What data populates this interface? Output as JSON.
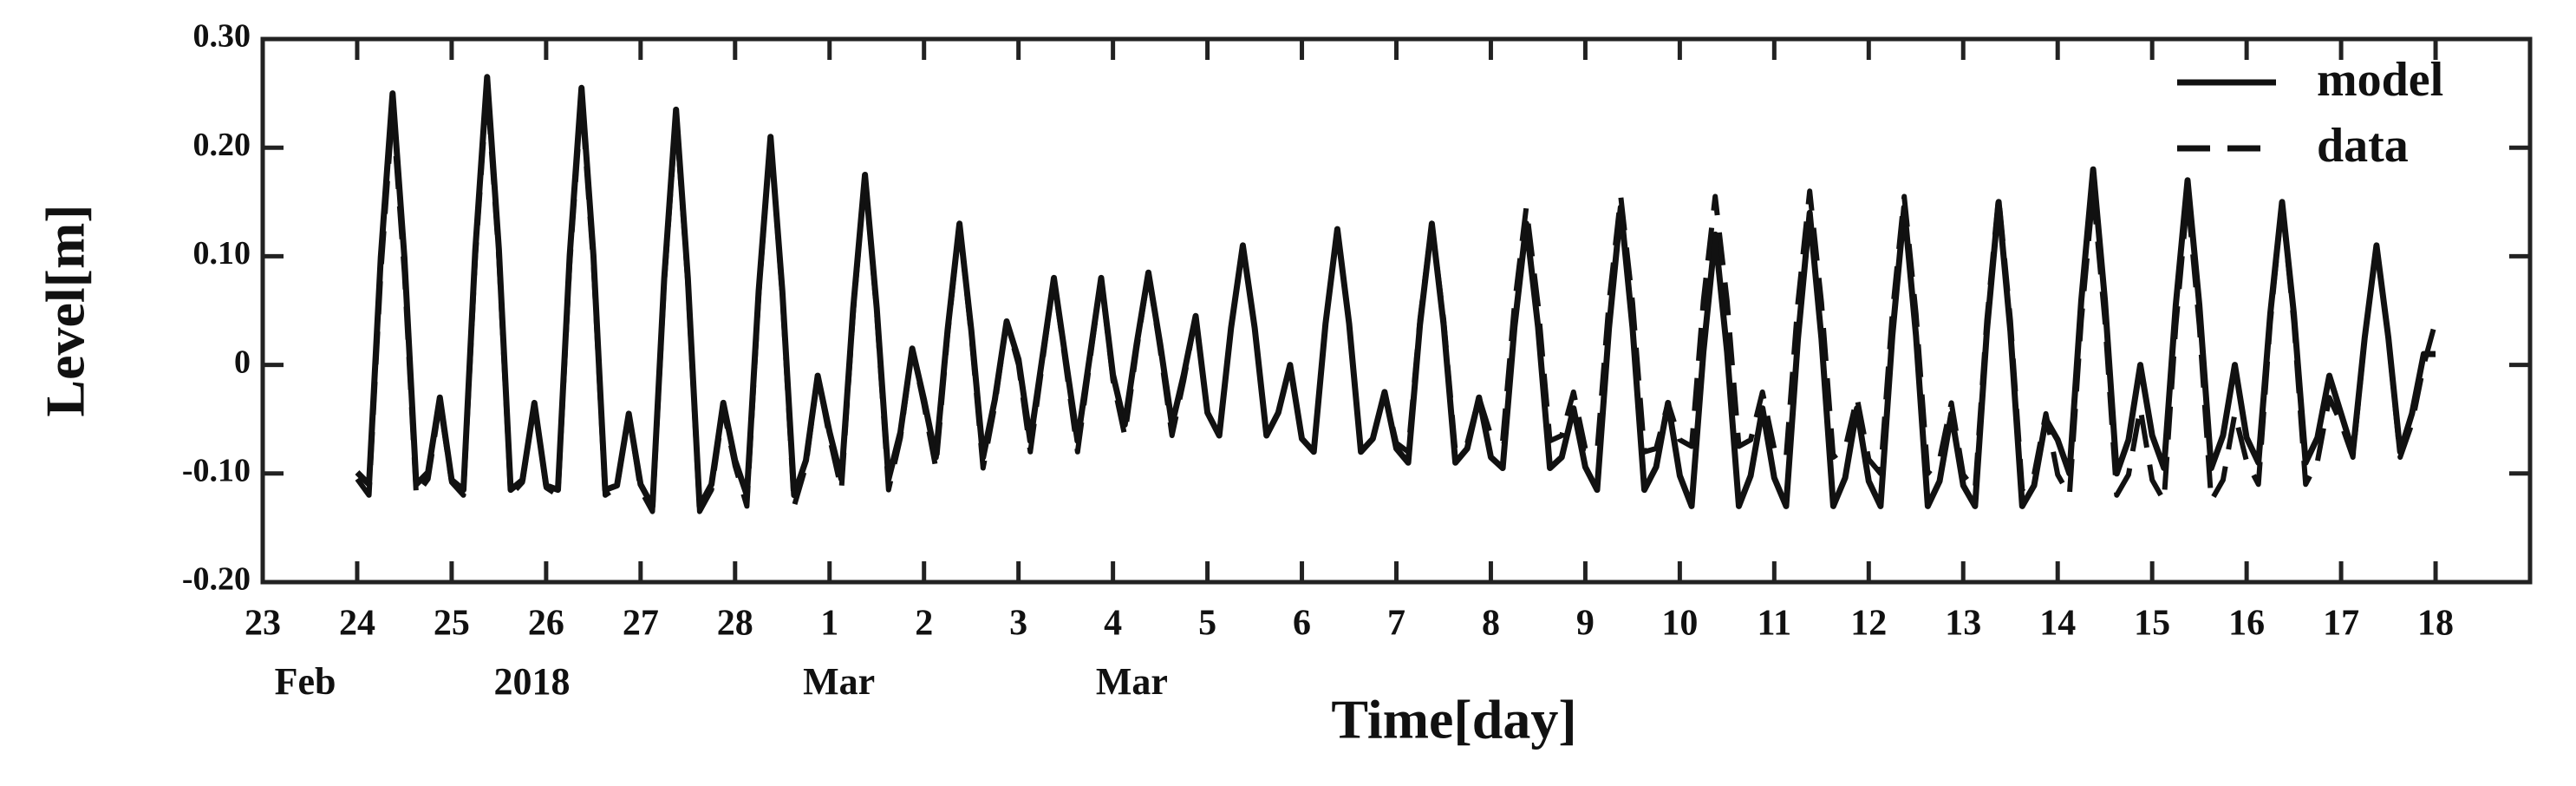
{
  "chart_data": {
    "type": "line",
    "x_label": "Time[day]",
    "y_label": "Level[m]",
    "x": [
      24,
      24.125,
      24.25,
      24.375,
      24.5,
      24.625,
      24.75,
      24.875,
      25,
      25.125,
      25.25,
      25.375,
      25.5,
      25.625,
      25.75,
      25.875,
      26,
      26.125,
      26.25,
      26.375,
      26.5,
      26.625,
      26.75,
      26.875,
      27,
      27.125,
      27.25,
      27.375,
      27.5,
      27.625,
      27.75,
      27.875,
      28,
      28.125,
      28.25,
      28.375,
      28.5,
      28.625,
      28.75,
      28.875,
      29,
      29.125,
      29.25,
      29.375,
      29.5,
      29.625,
      29.75,
      29.875,
      30,
      30.125,
      30.25,
      30.375,
      30.5,
      30.625,
      30.75,
      30.875,
      31,
      31.125,
      31.25,
      31.375,
      31.5,
      31.625,
      31.75,
      31.875,
      32,
      32.125,
      32.25,
      32.375,
      32.5,
      32.625,
      32.75,
      32.875,
      33,
      33.125,
      33.25,
      33.375,
      33.5,
      33.625,
      33.75,
      33.875,
      34,
      34.125,
      34.25,
      34.375,
      34.5,
      34.625,
      34.75,
      34.875,
      35,
      35.125,
      35.25,
      35.375,
      35.5,
      35.625,
      35.75,
      35.875,
      36,
      36.125,
      36.25,
      36.375,
      36.5,
      36.625,
      36.75,
      36.875,
      37,
      37.125,
      37.25,
      37.375,
      37.5,
      37.625,
      37.75,
      37.875,
      38,
      38.125,
      38.25,
      38.375,
      38.5,
      38.625,
      38.75,
      38.875,
      39,
      39.125,
      39.25,
      39.375,
      39.5,
      39.625,
      39.75,
      39.875,
      40,
      40.125,
      40.25,
      40.375,
      40.5,
      40.625,
      40.75,
      40.875,
      41,
      41.125,
      41.25,
      41.375,
      41.5,
      41.625,
      41.75,
      41.875,
      42,
      42.125,
      42.25,
      42.375,
      42.5,
      42.625,
      42.75,
      42.875,
      43,
      43.125,
      43.25,
      43.375,
      43.5,
      43.625,
      43.75,
      43.875,
      44,
      44.125,
      44.25,
      44.375,
      44.5,
      44.625,
      44.75,
      44.875,
      45,
      45.125,
      45.25,
      45.375,
      45.5,
      45.625,
      45.75,
      45.875,
      46
    ],
    "series": [
      {
        "name": "model",
        "color": "#111111",
        "dash": false,
        "values": [
          -0.099,
          -0.11,
          0.099,
          0.25,
          0.099,
          -0.11,
          -0.099,
          -0.03,
          -0.106,
          -0.115,
          0.106,
          0.265,
          0.106,
          -0.115,
          -0.106,
          -0.035,
          -0.111,
          -0.115,
          0.101,
          0.255,
          0.101,
          -0.115,
          -0.111,
          -0.045,
          -0.11,
          -0.13,
          0.08,
          0.235,
          0.08,
          -0.13,
          -0.11,
          -0.035,
          -0.088,
          -0.12,
          0.068,
          0.21,
          0.068,
          -0.12,
          -0.088,
          -0.01,
          -0.062,
          -0.105,
          0.052,
          0.175,
          0.052,
          -0.105,
          -0.062,
          0.015,
          -0.032,
          -0.085,
          0.032,
          0.13,
          0.032,
          -0.085,
          -0.032,
          0.04,
          0.005,
          -0.07,
          0.005,
          0.08,
          0.005,
          -0.07,
          0.005,
          0.08,
          -0.009,
          -0.055,
          0.019,
          0.085,
          0.019,
          -0.055,
          -0.009,
          0.045,
          -0.044,
          -0.065,
          0.034,
          0.11,
          0.034,
          -0.065,
          -0.044,
          0,
          -0.068,
          -0.08,
          0.038,
          0.125,
          0.038,
          -0.08,
          -0.068,
          -0.025,
          -0.077,
          -0.09,
          0.037,
          0.13,
          0.037,
          -0.09,
          -0.077,
          -0.03,
          -0.085,
          -0.095,
          0.035,
          0.13,
          0.035,
          -0.095,
          -0.085,
          -0.04,
          -0.094,
          -0.115,
          0.034,
          0.145,
          0.034,
          -0.115,
          -0.094,
          -0.035,
          -0.102,
          -0.13,
          0.012,
          0.12,
          0.012,
          -0.13,
          -0.102,
          -0.04,
          -0.104,
          -0.13,
          0.024,
          0.14,
          0.024,
          -0.13,
          -0.104,
          -0.04,
          -0.107,
          -0.13,
          0.027,
          0.145,
          0.027,
          -0.13,
          -0.107,
          -0.045,
          -0.111,
          -0.13,
          0.031,
          0.15,
          0.031,
          -0.13,
          -0.111,
          -0.05,
          -0.069,
          -0.1,
          0.059,
          0.18,
          0.059,
          -0.1,
          -0.069,
          0,
          -0.065,
          -0.095,
          0.055,
          0.17,
          0.055,
          -0.095,
          -0.065,
          0,
          -0.067,
          -0.09,
          0.047,
          0.15,
          0.047,
          -0.09,
          -0.067,
          -0.01,
          -0.045,
          -0.08,
          0.025,
          0.11,
          0.025,
          -0.08,
          -0.045,
          0.01,
          0.01
        ]
      },
      {
        "name": "data",
        "color": "#111111",
        "dash": true,
        "values": [
          -0.105,
          -0.12,
          0.085,
          0.235,
          0.085,
          -0.12,
          -0.105,
          -0.035,
          -0.108,
          -0.12,
          0.098,
          0.255,
          0.098,
          -0.12,
          -0.108,
          -0.035,
          -0.113,
          -0.12,
          0.093,
          0.245,
          0.093,
          -0.12,
          -0.113,
          -0.045,
          -0.115,
          -0.135,
          0.075,
          0.23,
          0.075,
          -0.135,
          -0.115,
          -0.04,
          -0.093,
          -0.13,
          0.063,
          0.21,
          0.063,
          -0.13,
          -0.093,
          -0.01,
          -0.067,
          -0.115,
          0.047,
          0.175,
          0.047,
          -0.115,
          -0.067,
          0.015,
          -0.037,
          -0.095,
          0.027,
          0.13,
          0.027,
          -0.095,
          -0.037,
          0.04,
          0,
          -0.08,
          0,
          0.08,
          0,
          -0.08,
          0,
          0.08,
          -0.014,
          -0.065,
          0.014,
          0.085,
          0.014,
          -0.065,
          -0.014,
          0.045,
          -0.044,
          -0.065,
          0.034,
          0.11,
          0.034,
          -0.065,
          -0.044,
          0,
          -0.068,
          -0.08,
          0.038,
          0.125,
          0.038,
          -0.08,
          -0.068,
          -0.025,
          -0.072,
          -0.08,
          0.042,
          0.13,
          0.042,
          -0.08,
          -0.072,
          -0.03,
          -0.065,
          -0.07,
          0.055,
          0.145,
          0.055,
          -0.07,
          -0.065,
          -0.025,
          -0.077,
          -0.08,
          0.057,
          0.155,
          0.057,
          -0.08,
          -0.077,
          -0.035,
          -0.069,
          -0.075,
          0.059,
          0.155,
          0.059,
          -0.075,
          -0.069,
          -0.025,
          -0.077,
          -0.085,
          0.057,
          0.16,
          0.057,
          -0.085,
          -0.077,
          -0.03,
          -0.087,
          -0.1,
          0.047,
          0.155,
          0.047,
          -0.1,
          -0.087,
          -0.035,
          -0.101,
          -0.115,
          0.041,
          0.155,
          0.041,
          -0.115,
          -0.101,
          -0.045,
          -0.101,
          -0.12,
          0.041,
          0.16,
          0.041,
          -0.12,
          -0.101,
          -0.04,
          -0.106,
          -0.125,
          0.036,
          0.155,
          0.036,
          -0.125,
          -0.106,
          -0.045,
          -0.089,
          -0.11,
          0.039,
          0.15,
          0.039,
          -0.11,
          -0.089,
          -0.03,
          -0.054,
          -0.085,
          0.024,
          0.11,
          0.024,
          -0.085,
          -0.054,
          0,
          0.04
        ]
      }
    ],
    "xlim": [
      23,
      47
    ],
    "xticks": [
      23,
      24,
      25,
      26,
      27,
      28,
      {
        "value": 29,
        "label": "1"
      },
      {
        "value": 30,
        "label": "2"
      },
      {
        "value": 31,
        "label": "3"
      },
      {
        "value": 32,
        "label": "4"
      },
      {
        "value": 33,
        "label": "5"
      },
      {
        "value": 34,
        "label": "6"
      },
      {
        "value": 35,
        "label": "7"
      },
      {
        "value": 36,
        "label": "8"
      },
      {
        "value": 37,
        "label": "9"
      },
      {
        "value": 38,
        "label": "10"
      },
      {
        "value": 39,
        "label": "11"
      },
      {
        "value": 40,
        "label": "12"
      },
      {
        "value": 41,
        "label": "13"
      },
      {
        "value": 42,
        "label": "14"
      },
      {
        "value": 43,
        "label": "15"
      },
      {
        "value": 44,
        "label": "16"
      },
      {
        "value": 45,
        "label": "17"
      },
      {
        "value": 46,
        "label": "18"
      }
    ],
    "ylim": [
      -0.2,
      0.3
    ],
    "yticks": [
      {
        "value": -0.2,
        "label": "-0.20"
      },
      {
        "value": -0.1,
        "label": "-0.10"
      },
      0,
      {
        "value": 0.1,
        "label": "0.10"
      },
      {
        "value": 0.2,
        "label": "0.20"
      },
      {
        "value": 0.3,
        "label": "0.30"
      }
    ],
    "annotations": [
      "Feb",
      "2018",
      "Mar",
      "Mar"
    ],
    "legend": "upper right",
    "grid": false
  }
}
